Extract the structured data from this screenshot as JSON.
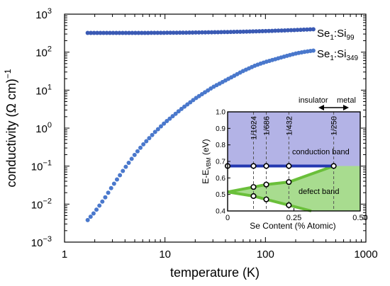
{
  "chart_data": [
    {
      "type": "scatter",
      "xscale": "log",
      "yscale": "log",
      "xlim": [
        1,
        1000
      ],
      "ylim": [
        0.001,
        1000
      ],
      "xlabel": "temperature (K)",
      "ylabel": "conductivity (Ω cm)",
      "ylabel_exp": "−1",
      "xticks": [
        {
          "value": 1,
          "label": "1"
        },
        {
          "value": 10,
          "label": "10"
        },
        {
          "value": 100,
          "label": "100"
        },
        {
          "value": 1000,
          "label": "1000"
        }
      ],
      "yticks": [
        {
          "value": 0.001,
          "base": "10",
          "exp": "−3"
        },
        {
          "value": 0.01,
          "base": "10",
          "exp": "−2"
        },
        {
          "value": 0.1,
          "base": "10",
          "exp": "−1"
        },
        {
          "value": 1,
          "base": "10",
          "exp": "0"
        },
        {
          "value": 10,
          "base": "10",
          "exp": "1"
        },
        {
          "value": 100,
          "base": "10",
          "exp": "2"
        },
        {
          "value": 1000,
          "base": "10",
          "exp": "3"
        }
      ],
      "series": [
        {
          "name": "Se1:Si99",
          "label_main": "Se",
          "label_sub1": "1",
          "label_mid": ":Si",
          "label_sub2": "99",
          "color": "#3a5ab4",
          "x_range": [
            1.7,
            300
          ],
          "y_range": [
            320,
            400
          ],
          "points": 72
        },
        {
          "name": "Se1:Si349",
          "label_main": "Se",
          "label_sub1": "1",
          "label_mid": ":Si",
          "label_sub2": "349",
          "color": "#4a78cc",
          "curve": [
            [
              1.7,
              0.0038
            ],
            [
              2.0,
              0.0062
            ],
            [
              2.5,
              0.014
            ],
            [
              3,
              0.03
            ],
            [
              4,
              0.09
            ],
            [
              5,
              0.2
            ],
            [
              6,
              0.36
            ],
            [
              8,
              0.8
            ],
            [
              10,
              1.4
            ],
            [
              15,
              3.4
            ],
            [
              20,
              6
            ],
            [
              30,
              12
            ],
            [
              40,
              18
            ],
            [
              60,
              32
            ],
            [
              80,
              45
            ],
            [
              100,
              55
            ],
            [
              150,
              75
            ],
            [
              200,
              92
            ],
            [
              250,
              103
            ],
            [
              300,
              110
            ]
          ],
          "points": 78
        }
      ]
    },
    {
      "type": "line",
      "xlim": [
        0,
        0.5
      ],
      "ylim": [
        0.4,
        1.0
      ],
      "xlabel": "Se Content (% Atomic)",
      "ylabel_main": "E-E",
      "ylabel_sub": "VBM",
      "ylabel_unit": " (eV)",
      "xticks": [
        {
          "value": 0,
          "label": "0"
        },
        {
          "value": 0.25,
          "label": "0.25"
        },
        {
          "value": 0.5,
          "label": "0.50"
        }
      ],
      "yticks": [
        {
          "value": 0.4,
          "label": "0.4"
        },
        {
          "value": 0.5,
          "label": "0.5"
        },
        {
          "value": 0.6,
          "label": "0.6"
        },
        {
          "value": 0.7,
          "label": "0.7"
        },
        {
          "value": 0.8,
          "label": "0.8"
        },
        {
          "value": 0.9,
          "label": "0.9"
        },
        {
          "value": 1.0,
          "label": "1.0"
        }
      ],
      "conduction_band": {
        "label": "conduction band",
        "y_from": 0.672,
        "y_to": 1.0,
        "color": "#b3b3e6"
      },
      "defect_band": {
        "label": "defect band",
        "color": "#a8dc8f"
      },
      "transition_x": 0.4,
      "arrow_labels": {
        "left": "insulator",
        "right": "metal"
      },
      "guides": [
        {
          "x": 0.0976,
          "label": "1/1024"
        },
        {
          "x": 0.1458,
          "label": "1/686"
        },
        {
          "x": 0.2309,
          "label": "1/432"
        },
        {
          "x": 0.4,
          "label": "1/250"
        }
      ],
      "cb_edge": {
        "color": "#2438b0",
        "x": [
          0,
          0.0976,
          0.1458,
          0.2309,
          0.4
        ],
        "y": [
          0.672,
          0.672,
          0.672,
          0.672,
          0.672
        ]
      },
      "defect_upper": {
        "color": "#6abf3a",
        "x": [
          0,
          0.0976,
          0.1458,
          0.2309,
          0.4
        ],
        "y": [
          0.515,
          0.545,
          0.56,
          0.575,
          0.672
        ]
      },
      "defect_lower": {
        "color": "#6abf3a",
        "x": [
          0,
          0.0976,
          0.1458,
          0.2309,
          0.4
        ],
        "y": [
          0.515,
          0.49,
          0.47,
          0.435,
          0.365
        ]
      },
      "markers": [
        {
          "x": 0,
          "y": 0.672
        },
        {
          "x": 0.0976,
          "y": 0.672
        },
        {
          "x": 0.1458,
          "y": 0.672
        },
        {
          "x": 0.2309,
          "y": 0.672
        },
        {
          "x": 0.4,
          "y": 0.672
        },
        {
          "x": 0.0976,
          "y": 0.545
        },
        {
          "x": 0.1458,
          "y": 0.56
        },
        {
          "x": 0.2309,
          "y": 0.575
        },
        {
          "x": 0.0976,
          "y": 0.49
        },
        {
          "x": 0.1458,
          "y": 0.47
        },
        {
          "x": 0.2309,
          "y": 0.435
        }
      ]
    }
  ]
}
